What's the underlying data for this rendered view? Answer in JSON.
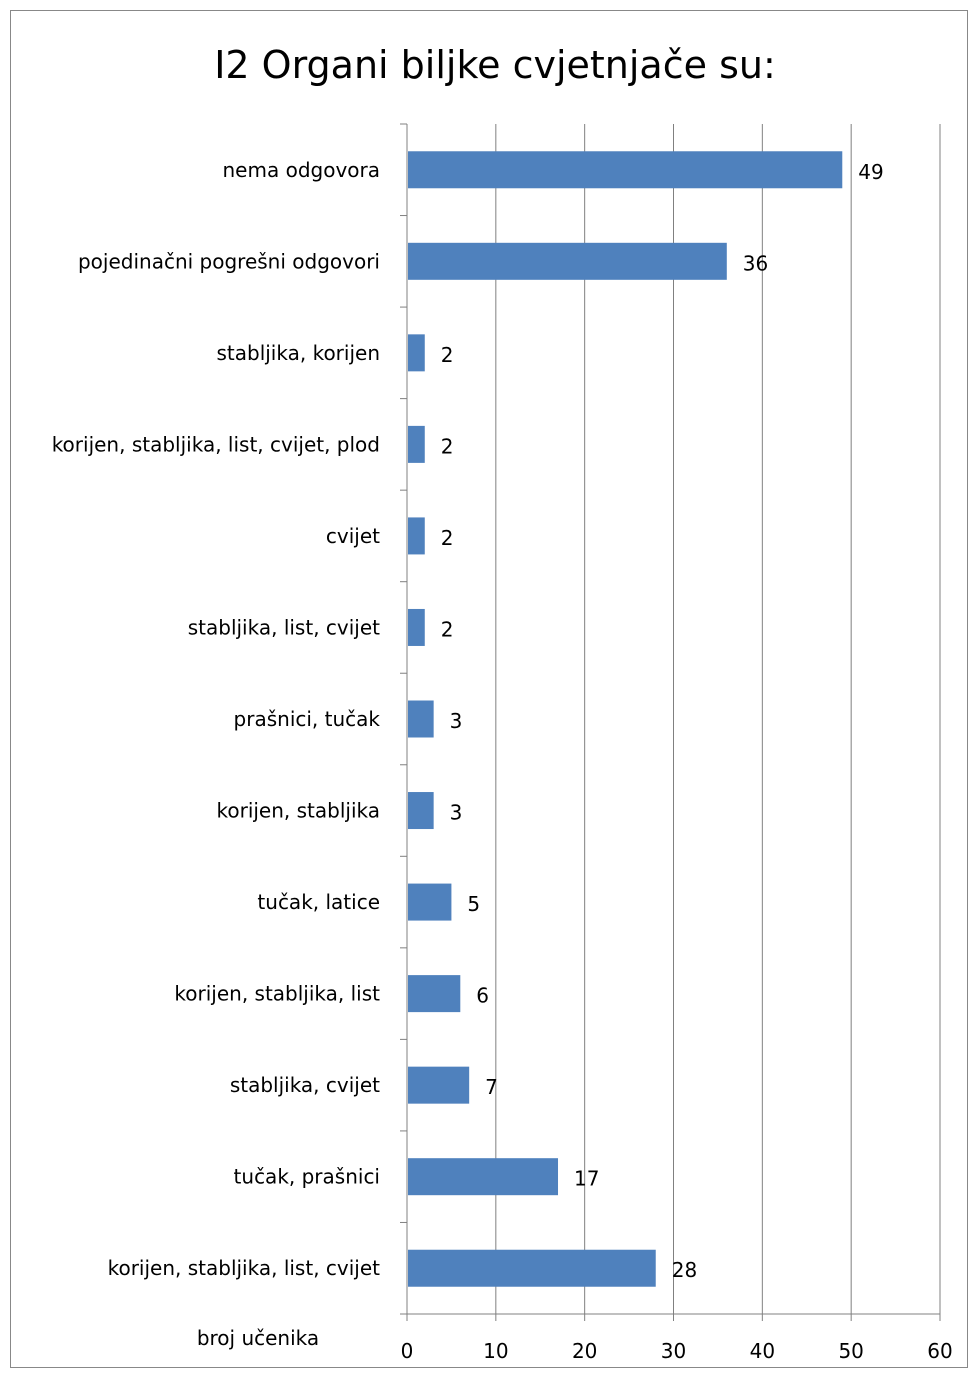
{
  "chart_data": {
    "type": "bar",
    "orientation": "horizontal",
    "title": "I2 Organi biljke cvjetnjače su:",
    "xlabel": "broj učenika",
    "ylabel": "",
    "categories": [
      "nema odgovora",
      "pojedinačni pogrešni odgovori",
      "stabljika, korijen",
      "korijen, stabljika, list, cvijet, plod",
      "cvijet",
      "stabljika, list, cvijet",
      "prašnici, tučak",
      "korijen, stabljika",
      "tučak, latice",
      "korijen, stabljika, list",
      "stabljika, cvijet",
      "tučak, prašnici",
      "korijen, stabljika, list, cvijet"
    ],
    "values": [
      49,
      36,
      2,
      2,
      2,
      2,
      3,
      3,
      5,
      6,
      7,
      17,
      28
    ],
    "xlim": [
      0,
      60
    ],
    "xticks": [
      0,
      10,
      20,
      30,
      40,
      50,
      60
    ],
    "grid": "vertical",
    "legend": "none",
    "bar_color": "#4F81BD",
    "grid_color": "#808080"
  }
}
